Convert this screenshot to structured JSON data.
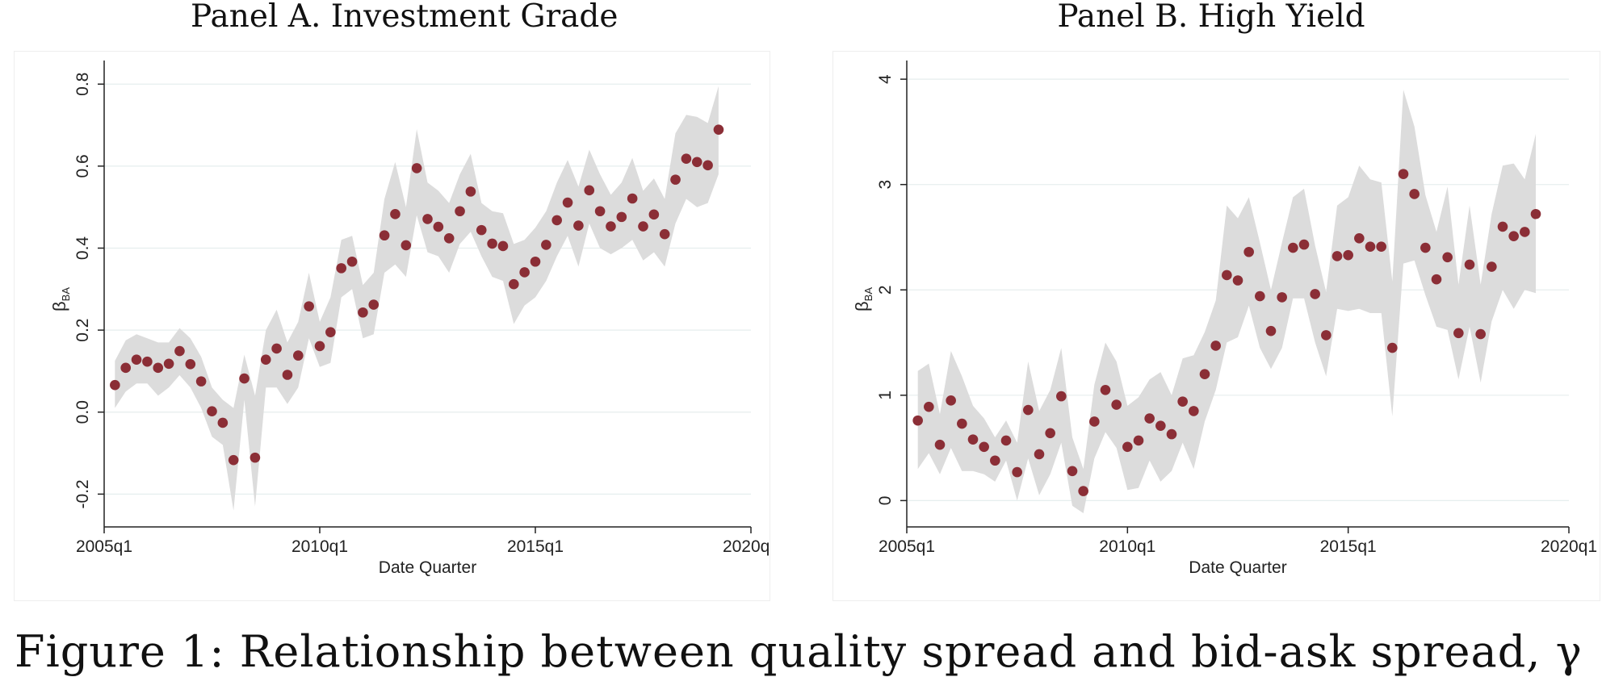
{
  "caption": "Figure 1: Relationship between quality spread and bid-ask spread, γ",
  "chart_data": [
    {
      "type": "scatter",
      "title": "Panel A. Investment Grade",
      "xlabel": "Date Quarter",
      "ylabel": "β",
      "ylabel_sub": "BA",
      "xlim": [
        2005.0,
        2020.0
      ],
      "ylim": [
        -0.28,
        0.83
      ],
      "xticks": [
        2005,
        2010,
        2015,
        2020
      ],
      "xtick_labels": [
        "2005q1",
        "2010q1",
        "2015q1",
        "2020q1"
      ],
      "yticks": [
        -0.2,
        0.0,
        0.2,
        0.4,
        0.6,
        0.8
      ],
      "ytick_labels": [
        "-0.2",
        "0.0",
        "0.2",
        "0.4",
        "0.6",
        "0.8"
      ],
      "grid": true,
      "colors": {
        "point": "#8b2e36",
        "band": "#dcdcdc",
        "grid": "#e6eeee"
      },
      "x": [
        2005.25,
        2005.5,
        2005.75,
        2006.0,
        2006.25,
        2006.5,
        2006.75,
        2007.0,
        2007.25,
        2007.5,
        2007.75,
        2008.0,
        2008.25,
        2008.5,
        2008.75,
        2009.0,
        2009.25,
        2009.5,
        2009.75,
        2010.0,
        2010.25,
        2010.5,
        2010.75,
        2011.0,
        2011.25,
        2011.5,
        2011.75,
        2012.0,
        2012.25,
        2012.5,
        2012.75,
        2013.0,
        2013.25,
        2013.5,
        2013.75,
        2014.0,
        2014.25,
        2014.5,
        2014.75,
        2015.0,
        2015.25,
        2015.5,
        2015.75,
        2016.0,
        2016.25,
        2016.5,
        2016.75,
        2017.0,
        2017.25,
        2017.5,
        2017.75,
        2018.0,
        2018.25,
        2018.5,
        2018.75,
        2019.0,
        2019.25
      ],
      "y": [
        0.066,
        0.108,
        0.128,
        0.123,
        0.108,
        0.118,
        0.149,
        0.117,
        0.075,
        0.002,
        -0.026,
        -0.117,
        0.082,
        -0.111,
        0.128,
        0.155,
        0.091,
        0.138,
        0.258,
        0.161,
        0.195,
        0.351,
        0.367,
        0.243,
        0.262,
        0.431,
        0.483,
        0.407,
        0.595,
        0.471,
        0.452,
        0.424,
        0.49,
        0.538,
        0.444,
        0.411,
        0.405,
        0.312,
        0.341,
        0.367,
        0.408,
        0.468,
        0.511,
        0.455,
        0.541,
        0.49,
        0.453,
        0.476,
        0.521,
        0.453,
        0.482,
        0.434,
        0.567,
        0.618,
        0.61,
        0.602,
        0.689
      ],
      "lower": [
        0.01,
        0.05,
        0.07,
        0.07,
        0.04,
        0.06,
        0.09,
        0.06,
        0.01,
        -0.06,
        -0.08,
        -0.24,
        0.03,
        -0.23,
        0.06,
        0.06,
        0.02,
        0.06,
        0.18,
        0.11,
        0.12,
        0.28,
        0.3,
        0.18,
        0.19,
        0.34,
        0.36,
        0.33,
        0.48,
        0.39,
        0.38,
        0.34,
        0.41,
        0.44,
        0.38,
        0.33,
        0.32,
        0.215,
        0.26,
        0.28,
        0.32,
        0.38,
        0.43,
        0.355,
        0.46,
        0.4,
        0.385,
        0.4,
        0.42,
        0.37,
        0.39,
        0.355,
        0.46,
        0.52,
        0.5,
        0.51,
        0.58
      ],
      "upper": [
        0.125,
        0.175,
        0.19,
        0.18,
        0.17,
        0.17,
        0.205,
        0.18,
        0.135,
        0.06,
        0.03,
        0.01,
        0.14,
        0.04,
        0.2,
        0.25,
        0.17,
        0.22,
        0.34,
        0.22,
        0.28,
        0.42,
        0.43,
        0.31,
        0.34,
        0.52,
        0.61,
        0.5,
        0.69,
        0.56,
        0.54,
        0.51,
        0.58,
        0.63,
        0.51,
        0.49,
        0.485,
        0.41,
        0.42,
        0.45,
        0.49,
        0.56,
        0.615,
        0.55,
        0.64,
        0.58,
        0.53,
        0.56,
        0.62,
        0.54,
        0.57,
        0.52,
        0.68,
        0.725,
        0.72,
        0.705,
        0.795
      ]
    },
    {
      "type": "scatter",
      "title": "Panel B. High Yield",
      "xlabel": "Date Quarter",
      "ylabel": "β",
      "ylabel_sub": "BA",
      "xlim": [
        2005.0,
        2020.0
      ],
      "ylim": [
        -0.25,
        4.07
      ],
      "xticks": [
        2005,
        2010,
        2015,
        2020
      ],
      "xtick_labels": [
        "2005q1",
        "2010q1",
        "2015q1",
        "2020q1"
      ],
      "yticks": [
        0,
        1,
        2,
        3,
        4
      ],
      "ytick_labels": [
        "0",
        "1",
        "2",
        "3",
        "4"
      ],
      "grid": true,
      "colors": {
        "point": "#8b2e36",
        "band": "#dcdcdc",
        "grid": "#e6eeee"
      },
      "x": [
        2005.25,
        2005.5,
        2005.75,
        2006.0,
        2006.25,
        2006.5,
        2006.75,
        2007.0,
        2007.25,
        2007.5,
        2007.75,
        2008.0,
        2008.25,
        2008.5,
        2008.75,
        2009.0,
        2009.25,
        2009.5,
        2009.75,
        2010.0,
        2010.25,
        2010.5,
        2010.75,
        2011.0,
        2011.25,
        2011.5,
        2011.75,
        2012.0,
        2012.25,
        2012.5,
        2012.75,
        2013.0,
        2013.25,
        2013.5,
        2013.75,
        2014.0,
        2014.25,
        2014.5,
        2014.75,
        2015.0,
        2015.25,
        2015.5,
        2015.75,
        2016.0,
        2016.25,
        2016.5,
        2016.75,
        2017.0,
        2017.25,
        2017.5,
        2017.75,
        2018.0,
        2018.25,
        2018.5,
        2018.75,
        2019.0,
        2019.25
      ],
      "y": [
        0.76,
        0.89,
        0.53,
        0.95,
        0.73,
        0.58,
        0.51,
        0.38,
        0.57,
        0.27,
        0.86,
        0.44,
        0.64,
        0.99,
        0.28,
        0.09,
        0.75,
        1.05,
        0.91,
        0.51,
        0.57,
        0.78,
        0.71,
        0.63,
        0.94,
        0.85,
        1.2,
        1.47,
        2.14,
        2.09,
        2.36,
        1.94,
        1.61,
        1.93,
        2.4,
        2.43,
        1.96,
        1.57,
        2.32,
        2.33,
        2.49,
        2.41,
        2.41,
        1.45,
        3.1,
        2.91,
        2.4,
        2.1,
        2.31,
        1.59,
        2.24,
        1.58,
        2.22,
        2.6,
        2.51,
        2.55,
        2.72
      ],
      "lower": [
        0.3,
        0.45,
        0.25,
        0.5,
        0.28,
        0.28,
        0.25,
        0.18,
        0.38,
        0.0,
        0.4,
        0.05,
        0.25,
        0.55,
        -0.05,
        -0.12,
        0.4,
        0.65,
        0.5,
        0.1,
        0.12,
        0.38,
        0.18,
        0.28,
        0.55,
        0.3,
        0.75,
        1.05,
        1.5,
        1.55,
        1.85,
        1.45,
        1.25,
        1.45,
        1.92,
        1.92,
        1.5,
        1.18,
        1.82,
        1.8,
        1.82,
        1.78,
        1.78,
        0.8,
        2.25,
        2.28,
        1.95,
        1.65,
        1.62,
        1.15,
        1.65,
        1.12,
        1.7,
        2.0,
        1.82,
        2.0,
        1.97
      ],
      "upper": [
        1.23,
        1.3,
        0.82,
        1.42,
        1.18,
        0.9,
        0.78,
        0.6,
        0.76,
        0.55,
        1.32,
        0.85,
        1.05,
        1.45,
        0.6,
        0.3,
        1.1,
        1.5,
        1.32,
        0.9,
        0.98,
        1.15,
        1.22,
        1.0,
        1.35,
        1.38,
        1.6,
        1.9,
        2.8,
        2.68,
        2.88,
        2.45,
        2.0,
        2.45,
        2.88,
        2.96,
        2.42,
        1.98,
        2.8,
        2.88,
        3.18,
        3.05,
        3.02,
        2.08,
        3.9,
        3.55,
        2.9,
        2.55,
        2.98,
        2.05,
        2.8,
        2.05,
        2.72,
        3.18,
        3.2,
        3.05,
        3.48
      ]
    }
  ]
}
